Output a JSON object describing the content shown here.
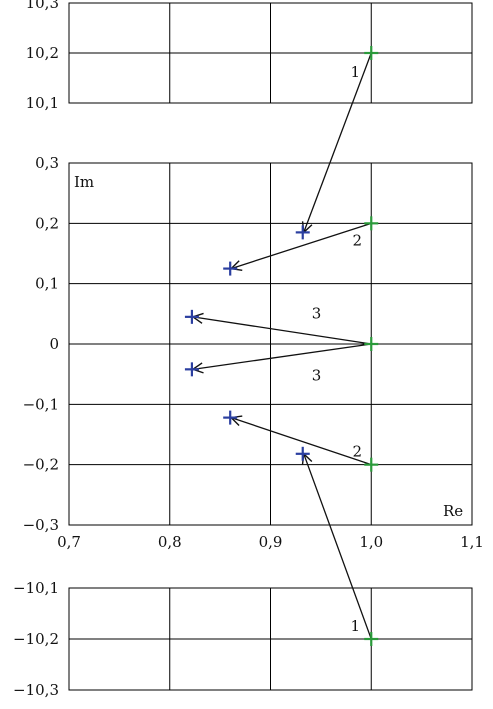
{
  "chart_data": {
    "type": "scatter",
    "title": "",
    "xlabel": "Re",
    "ylabel": "Im",
    "xlim": [
      0.7,
      1.1
    ],
    "x_ticks": [
      "0,7",
      "0,8",
      "0,9",
      "1,0",
      "1,1"
    ],
    "x_tick_values": [
      0.7,
      0.8,
      0.9,
      1.0,
      1.1
    ],
    "grid": true,
    "panels": [
      {
        "name": "top",
        "ylim": [
          10.1,
          10.3
        ],
        "y_ticks": [
          "10,1",
          "10,2",
          "10,3"
        ],
        "y_tick_values": [
          10.1,
          10.2,
          10.3
        ]
      },
      {
        "name": "middle",
        "ylim": [
          -0.3,
          0.3
        ],
        "y_ticks": [
          "-0,3",
          "-0,2",
          "-0,1",
          "0",
          "0,1",
          "0,2",
          "0,3"
        ],
        "y_tick_values": [
          -0.3,
          -0.2,
          -0.1,
          0,
          0.1,
          0.2,
          0.3
        ]
      },
      {
        "name": "bottom",
        "ylim": [
          -10.3,
          -10.1
        ],
        "y_ticks": [
          "-10,1",
          "-10,2",
          "-10,3"
        ],
        "y_tick_values": [
          -10.1,
          -10.2,
          -10.3
        ]
      }
    ],
    "pairs": [
      {
        "label": "1",
        "from": [
          1.0,
          10.2
        ],
        "to": [
          0.932,
          0.185
        ]
      },
      {
        "label": "2",
        "from": [
          1.0,
          0.2
        ],
        "to": [
          0.86,
          0.125
        ]
      },
      {
        "label": "3",
        "from": [
          1.0,
          0.0
        ],
        "to": [
          0.822,
          0.045
        ]
      },
      {
        "label": "3",
        "from": [
          1.0,
          0.0
        ],
        "to": [
          0.822,
          -0.042
        ]
      },
      {
        "label": "2",
        "from": [
          1.0,
          -0.2
        ],
        "to": [
          0.86,
          -0.122
        ]
      },
      {
        "label": "1",
        "from": [
          1.0,
          -10.2
        ],
        "to": [
          0.932,
          -0.182
        ]
      }
    ],
    "colors": {
      "initial": "#2a9a3a",
      "final": "#2b3fa0"
    }
  }
}
